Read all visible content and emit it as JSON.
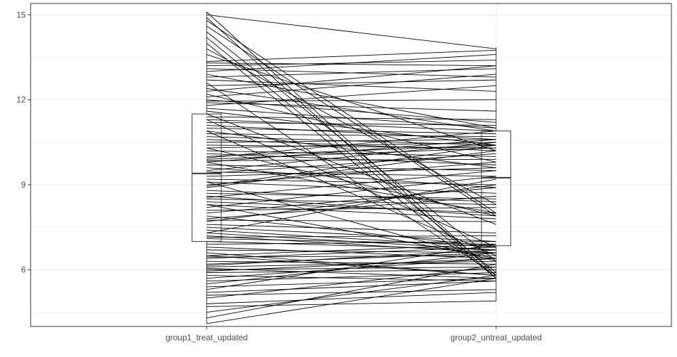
{
  "chart_data": {
    "type": "line",
    "subtype": "paired-lines-with-boxplot",
    "title": "",
    "xlabel": "",
    "ylabel": "",
    "categories": [
      "group1_treat_updated",
      "group2_untreat_updated"
    ],
    "ylim": [
      4.0,
      15.4
    ],
    "yticks": [
      6,
      9,
      12,
      15
    ],
    "grid": true,
    "legend": "none",
    "boxplots": [
      {
        "category": "group1_treat_updated",
        "q1": 7.0,
        "median": 9.4,
        "q3": 11.5,
        "whisker_low": 4.1,
        "whisker_high": 15.1
      },
      {
        "category": "group2_untreat_updated",
        "q1": 6.85,
        "median": 9.25,
        "q3": 10.9,
        "whisker_low": 4.9,
        "whisker_high": 13.85
      }
    ],
    "pairs": [
      [
        15.1,
        5.8
      ],
      [
        15.0,
        13.8
      ],
      [
        14.9,
        5.7
      ],
      [
        14.8,
        8.0
      ],
      [
        14.6,
        7.9
      ],
      [
        14.4,
        6.3
      ],
      [
        14.2,
        5.9
      ],
      [
        14.0,
        5.7
      ],
      [
        13.8,
        8.3
      ],
      [
        13.6,
        10.2
      ],
      [
        13.35,
        13.75
      ],
      [
        13.3,
        13.2
      ],
      [
        13.2,
        13.4
      ],
      [
        13.1,
        12.8
      ],
      [
        13.0,
        13.6
      ],
      [
        12.9,
        11.0
      ],
      [
        12.8,
        13.1
      ],
      [
        12.7,
        12.3
      ],
      [
        12.5,
        12.7
      ],
      [
        12.4,
        10.9
      ],
      [
        12.3,
        13.2
      ],
      [
        12.2,
        9.8
      ],
      [
        12.1,
        12.9
      ],
      [
        12.0,
        11.2
      ],
      [
        11.95,
        12.0
      ],
      [
        11.9,
        11.6
      ],
      [
        11.8,
        12.5
      ],
      [
        11.7,
        11.0
      ],
      [
        11.6,
        10.4
      ],
      [
        11.5,
        7.6
      ],
      [
        11.4,
        11.3
      ],
      [
        11.3,
        10.9
      ],
      [
        11.2,
        11.1
      ],
      [
        11.1,
        10.6
      ],
      [
        11.0,
        10.8
      ],
      [
        10.9,
        9.6
      ],
      [
        10.8,
        10.7
      ],
      [
        10.7,
        10.4
      ],
      [
        10.6,
        10.2
      ],
      [
        10.5,
        10.6
      ],
      [
        10.4,
        10.3
      ],
      [
        10.3,
        10.5
      ],
      [
        10.2,
        10.0
      ],
      [
        10.1,
        9.7
      ],
      [
        10.0,
        10.4
      ],
      [
        9.9,
        10.3
      ],
      [
        9.85,
        9.9
      ],
      [
        9.8,
        10.6
      ],
      [
        9.7,
        9.5
      ],
      [
        9.6,
        8.9
      ],
      [
        9.5,
        10.5
      ],
      [
        9.45,
        9.3
      ],
      [
        9.4,
        10.1
      ],
      [
        9.3,
        9.6
      ],
      [
        9.2,
        9.0
      ],
      [
        9.1,
        8.7
      ],
      [
        9.0,
        9.8
      ],
      [
        8.95,
        10.4
      ],
      [
        8.9,
        10.2
      ],
      [
        8.8,
        8.4
      ],
      [
        8.7,
        8.5
      ],
      [
        8.6,
        7.9
      ],
      [
        8.55,
        9.5
      ],
      [
        8.5,
        8.3
      ],
      [
        8.4,
        8.0
      ],
      [
        8.3,
        7.8
      ],
      [
        8.2,
        9.3
      ],
      [
        8.1,
        8.2
      ],
      [
        8.0,
        8.9
      ],
      [
        7.9,
        6.8
      ],
      [
        7.8,
        8.6
      ],
      [
        7.75,
        7.7
      ],
      [
        7.7,
        9.0
      ],
      [
        7.6,
        7.3
      ],
      [
        7.5,
        7.0
      ],
      [
        7.4,
        6.8
      ],
      [
        7.3,
        9.2
      ],
      [
        7.2,
        6.6
      ],
      [
        7.15,
        7.2
      ],
      [
        7.1,
        6.9
      ],
      [
        7.0,
        6.7
      ],
      [
        6.9,
        7.0
      ],
      [
        6.8,
        6.4
      ],
      [
        6.7,
        6.6
      ],
      [
        6.6,
        5.8
      ],
      [
        6.5,
        6.9
      ],
      [
        6.45,
        6.5
      ],
      [
        6.4,
        6.8
      ],
      [
        6.3,
        6.2
      ],
      [
        6.2,
        6.6
      ],
      [
        6.15,
        6.7
      ],
      [
        6.1,
        6.3
      ],
      [
        6.05,
        5.7
      ],
      [
        6.0,
        6.1
      ],
      [
        5.95,
        6.4
      ],
      [
        5.9,
        6.0
      ],
      [
        5.8,
        5.6
      ],
      [
        5.7,
        6.4
      ],
      [
        5.6,
        5.9
      ],
      [
        5.5,
        6.6
      ],
      [
        5.4,
        5.7
      ],
      [
        5.3,
        6.9
      ],
      [
        5.2,
        5.6
      ],
      [
        5.1,
        5.3
      ],
      [
        5.0,
        6.1
      ],
      [
        4.8,
        5.2
      ],
      [
        4.7,
        4.9
      ],
      [
        4.5,
        5.8
      ],
      [
        4.3,
        6.2
      ],
      [
        4.1,
        5.7
      ],
      [
        9.8,
        8.0
      ],
      [
        10.3,
        7.9
      ],
      [
        11.3,
        6.8
      ],
      [
        12.6,
        5.8
      ],
      [
        10.9,
        6.5
      ],
      [
        9.1,
        6.3
      ],
      [
        8.3,
        6.4
      ],
      [
        7.3,
        6.7
      ],
      [
        6.5,
        5.8
      ],
      [
        9.95,
        10.9
      ]
    ]
  }
}
